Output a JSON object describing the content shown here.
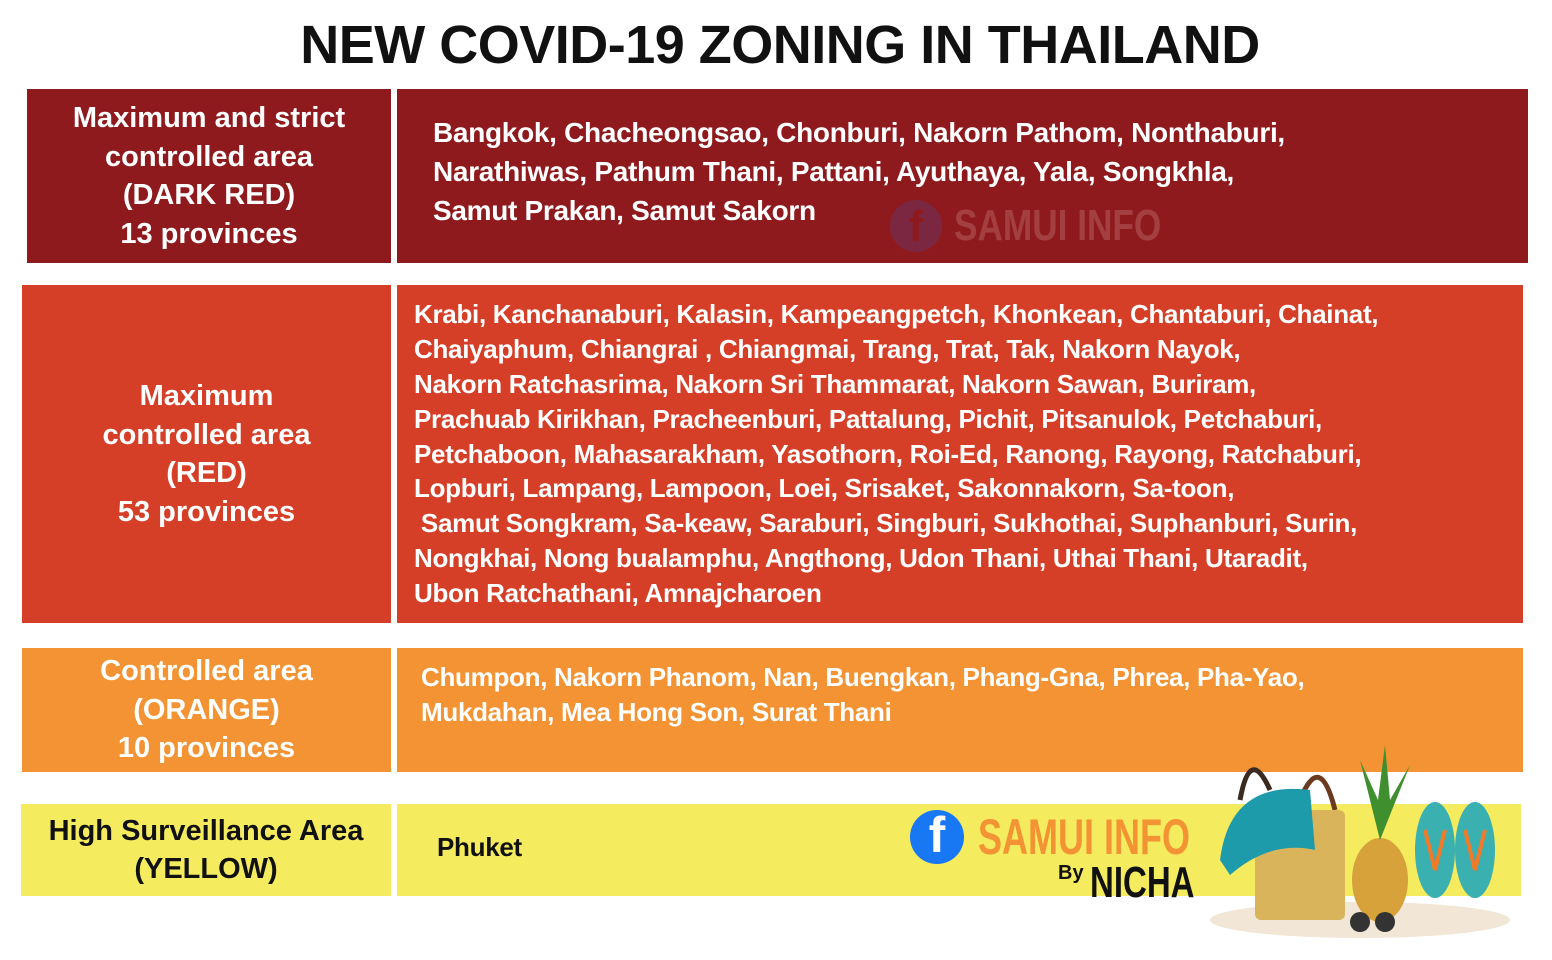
{
  "title": "NEW COVID-19 ZONING IN THAILAND",
  "colors": {
    "dark_red": "#8f1a1d",
    "red": "#d53e27",
    "orange": "#f39333",
    "yellow": "#f5eb5f"
  },
  "zones": [
    {
      "label_lines": [
        "Maximum and strict",
        "controlled area",
        "(DARK RED)",
        "13 provinces"
      ],
      "province_lines": [
        "Bangkok, Chacheongsao, Chonburi, Nakorn Pathom, Nonthaburi,",
        "Narathiwas, Pathum Thani, Pattani, Ayuthaya, Yala, Songkhla,",
        "Samut Prakan, Samut Sakorn"
      ]
    },
    {
      "label_lines": [
        "Maximum",
        "controlled area",
        "(RED)",
        "53 provinces"
      ],
      "province_lines": [
        "Krabi, Kanchanaburi, Kalasin, Kampeangpetch, Khonkean, Chantaburi, Chainat,",
        "Chaiyaphum, Chiangrai , Chiangmai, Trang, Trat, Tak, Nakorn Nayok,",
        "Nakorn Ratchasrima, Nakorn Sri Thammarat, Nakorn Sawan, Buriram,",
        "Prachuab Kirikhan, Pracheenburi, Pattalung, Pichit, Pitsanulok, Petchaburi,",
        "Petchaboon, Mahasarakham, Yasothorn, Roi-Ed, Ranong, Rayong, Ratchaburi,",
        "Lopburi, Lampang, Lampoon, Loei, Srisaket, Sakonnakorn, Sa-toon,",
        " Samut Songkram, Sa-keaw, Saraburi, Singburi, Sukhothai, Suphanburi, Surin,",
        "Nongkhai, Nong bualamphu, Angthong, Udon Thani, Uthai Thani, Utaradit,",
        "Ubon Ratchathani, Amnajcharoen"
      ]
    },
    {
      "label_lines": [
        "Controlled area",
        "(ORANGE)",
        "10 provinces"
      ],
      "province_lines": [
        "Chumpon, Nakorn Phanom, Nan, Buengkan, Phang-Gna, Phrea, Pha-Yao,",
        "Mukdahan, Mea Hong Son, Surat Thani"
      ]
    },
    {
      "label_lines": [
        "High Surveillance Area",
        "(YELLOW)"
      ],
      "province_lines": [
        "Phuket"
      ]
    }
  ],
  "branding": {
    "samui": "SAMUI INFO",
    "by": "By",
    "nicha": "NICHA",
    "icon": "facebook-icon"
  }
}
